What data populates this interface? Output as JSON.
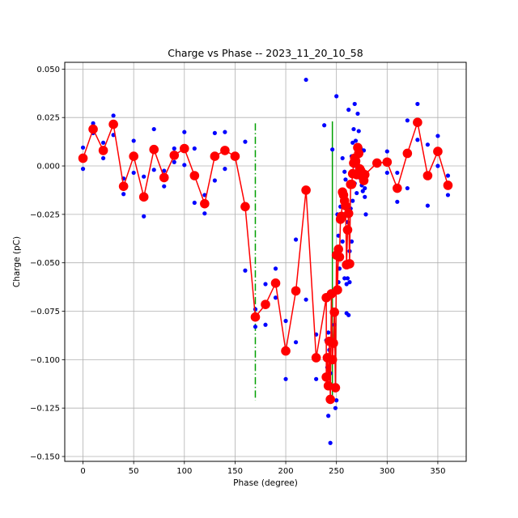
{
  "chart_data": {
    "type": "scatter",
    "title": "Charge vs Phase -- 2023_11_20_10_58",
    "xlabel": "Phase (degree)",
    "ylabel": "Charge (pC)",
    "xlim": [
      -18,
      378
    ],
    "ylim": [
      -0.1525,
      0.0535
    ],
    "xticks": [
      0,
      50,
      100,
      150,
      200,
      250,
      300,
      350
    ],
    "xtick_labels": [
      "0",
      "50",
      "100",
      "150",
      "200",
      "250",
      "300",
      "350"
    ],
    "yticks": [
      0.05,
      0.025,
      0.0,
      -0.025,
      -0.05,
      -0.075,
      -0.1,
      -0.125,
      -0.15
    ],
    "ytick_labels": [
      "0.050",
      "0.025",
      "0.000",
      "−0.025",
      "−0.050",
      "−0.075",
      "−0.100",
      "−0.125",
      "−0.150"
    ],
    "grid": true,
    "colors": {
      "raw": "#0000ff",
      "mean": "#ff0000",
      "vline1": "#00a000",
      "vline2": "#00a000"
    },
    "vlines": [
      {
        "name": "dashdot-marker",
        "x": 170,
        "ymin": -0.121,
        "ymax": 0.022,
        "style": "dashdot"
      },
      {
        "name": "solid-marker",
        "x": 246,
        "ymin": -0.121,
        "ymax": 0.023,
        "style": "solid"
      }
    ],
    "series": [
      {
        "name": "raw-charge",
        "style": "points",
        "points": [
          [
            0,
            0.0095
          ],
          [
            0,
            -0.0015
          ],
          [
            10,
            0.022
          ],
          [
            10,
            0.017
          ],
          [
            20,
            0.012
          ],
          [
            20,
            0.004
          ],
          [
            30,
            0.026
          ],
          [
            30,
            0.016
          ],
          [
            40,
            -0.0065
          ],
          [
            40,
            -0.0145
          ],
          [
            50,
            0.013
          ],
          [
            50,
            -0.0035
          ],
          [
            60,
            -0.0055
          ],
          [
            60,
            -0.026
          ],
          [
            70,
            0.019
          ],
          [
            70,
            -0.002
          ],
          [
            80,
            -0.0025
          ],
          [
            80,
            -0.0105
          ],
          [
            90,
            0.009
          ],
          [
            90,
            0.002
          ],
          [
            100,
            0.0175
          ],
          [
            100,
            0.0005
          ],
          [
            110,
            0.009
          ],
          [
            110,
            -0.019
          ],
          [
            120,
            -0.015
          ],
          [
            120,
            -0.0245
          ],
          [
            130,
            0.017
          ],
          [
            130,
            -0.0075
          ],
          [
            140,
            0.0175
          ],
          [
            140,
            -0.0015
          ],
          [
            150,
            0.0045
          ],
          [
            160,
            0.0125
          ],
          [
            160,
            -0.054
          ],
          [
            170,
            -0.074
          ],
          [
            170,
            -0.083
          ],
          [
            180,
            -0.061
          ],
          [
            180,
            -0.082
          ],
          [
            190,
            -0.053
          ],
          [
            190,
            -0.068
          ],
          [
            200,
            -0.08
          ],
          [
            200,
            -0.11
          ],
          [
            210,
            -0.038
          ],
          [
            210,
            -0.091
          ],
          [
            220,
            0.0445
          ],
          [
            220,
            -0.069
          ],
          [
            230,
            -0.087
          ],
          [
            230,
            -0.11
          ],
          [
            238,
            0.021
          ],
          [
            240,
            -0.09
          ],
          [
            241,
            -0.104
          ],
          [
            242,
            -0.129
          ],
          [
            242,
            -0.086
          ],
          [
            243,
            -0.095
          ],
          [
            244,
            -0.143
          ],
          [
            244,
            -0.107
          ],
          [
            245,
            -0.1
          ],
          [
            246,
            0.0085
          ],
          [
            247,
            -0.092
          ],
          [
            248,
            -0.082
          ],
          [
            249,
            -0.125
          ],
          [
            250,
            0.036
          ],
          [
            250,
            -0.121
          ],
          [
            251,
            -0.025
          ],
          [
            252,
            -0.036
          ],
          [
            252,
            -0.06
          ],
          [
            253,
            -0.053
          ],
          [
            254,
            -0.021
          ],
          [
            255,
            -0.047
          ],
          [
            256,
            0.004
          ],
          [
            256,
            -0.039
          ],
          [
            257,
            -0.025
          ],
          [
            258,
            -0.003
          ],
          [
            258,
            -0.058
          ],
          [
            259,
            -0.007
          ],
          [
            260,
            -0.061
          ],
          [
            260,
            -0.076
          ],
          [
            261,
            -0.029
          ],
          [
            261,
            -0.058
          ],
          [
            262,
            -0.077
          ],
          [
            262,
            0.029
          ],
          [
            263,
            -0.044
          ],
          [
            263,
            -0.06
          ],
          [
            264,
            -0.022
          ],
          [
            265,
            0.005
          ],
          [
            265,
            -0.039
          ],
          [
            266,
            0.012
          ],
          [
            266,
            -0.018
          ],
          [
            267,
            0.019
          ],
          [
            267,
            0.0
          ],
          [
            268,
            0.032
          ],
          [
            268,
            -0.009
          ],
          [
            269,
            0.013
          ],
          [
            270,
            -0.004
          ],
          [
            270,
            -0.014
          ],
          [
            271,
            0.027
          ],
          [
            272,
            0.018
          ],
          [
            273,
            -0.006
          ],
          [
            274,
            0.009
          ],
          [
            275,
            -0.01
          ],
          [
            276,
            -0.013
          ],
          [
            277,
            0.008
          ],
          [
            278,
            -0.0115
          ],
          [
            278,
            -0.016
          ],
          [
            279,
            -0.025
          ],
          [
            300,
            0.0075
          ],
          [
            300,
            -0.0035
          ],
          [
            310,
            -0.0035
          ],
          [
            310,
            -0.0185
          ],
          [
            320,
            0.0235
          ],
          [
            320,
            -0.0115
          ],
          [
            330,
            0.032
          ],
          [
            330,
            0.0135
          ],
          [
            340,
            0.011
          ],
          [
            340,
            -0.0205
          ],
          [
            350,
            0.0155
          ],
          [
            350,
            0.0
          ],
          [
            360,
            -0.005
          ],
          [
            360,
            -0.015
          ]
        ]
      },
      {
        "name": "mean-charge",
        "style": "line-markers",
        "points": [
          [
            0,
            0.004
          ],
          [
            10,
            0.019
          ],
          [
            20,
            0.008
          ],
          [
            30,
            0.0215
          ],
          [
            40,
            -0.0105
          ],
          [
            50,
            0.005
          ],
          [
            60,
            -0.016
          ],
          [
            70,
            0.0085
          ],
          [
            80,
            -0.006
          ],
          [
            90,
            0.0055
          ],
          [
            100,
            0.009
          ],
          [
            110,
            -0.005
          ],
          [
            120,
            -0.0195
          ],
          [
            130,
            0.005
          ],
          [
            140,
            0.008
          ],
          [
            150,
            0.005
          ],
          [
            160,
            -0.021
          ],
          [
            170,
            -0.078
          ],
          [
            180,
            -0.0715
          ],
          [
            190,
            -0.0605
          ],
          [
            200,
            -0.0955
          ],
          [
            210,
            -0.0645
          ],
          [
            220,
            -0.0125
          ],
          [
            230,
            -0.099
          ],
          [
            240,
            -0.068
          ],
          [
            240,
            -0.109
          ],
          [
            241,
            -0.099
          ],
          [
            242,
            -0.1135
          ],
          [
            243,
            -0.0905
          ],
          [
            244,
            -0.1205
          ],
          [
            245,
            -0.066
          ],
          [
            246,
            -0.1
          ],
          [
            247,
            -0.0915
          ],
          [
            248,
            -0.0755
          ],
          [
            249,
            -0.1145
          ],
          [
            250,
            -0.046
          ],
          [
            251,
            -0.064
          ],
          [
            252,
            -0.043
          ],
          [
            253,
            -0.047
          ],
          [
            254,
            -0.0275
          ],
          [
            255,
            -0.026
          ],
          [
            256,
            -0.0135
          ],
          [
            257,
            -0.015
          ],
          [
            258,
            -0.018
          ],
          [
            259,
            -0.0205
          ],
          [
            260,
            -0.051
          ],
          [
            261,
            -0.033
          ],
          [
            262,
            -0.0245
          ],
          [
            263,
            -0.0505
          ],
          [
            264,
            -0.0095
          ],
          [
            265,
            -0.0095
          ],
          [
            266,
            -0.004
          ],
          [
            267,
            0.0015
          ],
          [
            268,
            0.004
          ],
          [
            269,
            0.0025
          ],
          [
            270,
            -0.0045
          ],
          [
            271,
            0.0095
          ],
          [
            272,
            0.0065
          ],
          [
            273,
            -0.0015
          ],
          [
            274,
            -0.0025
          ],
          [
            275,
            -0.0035
          ],
          [
            276,
            -0.0055
          ],
          [
            277,
            -0.0075
          ],
          [
            278,
            -0.0045
          ],
          [
            290,
            0.0015
          ],
          [
            300,
            0.002
          ],
          [
            310,
            -0.0115
          ],
          [
            320,
            0.0065
          ],
          [
            330,
            0.0225
          ],
          [
            340,
            -0.005
          ],
          [
            350,
            0.0075
          ],
          [
            360,
            -0.01
          ]
        ]
      }
    ]
  }
}
